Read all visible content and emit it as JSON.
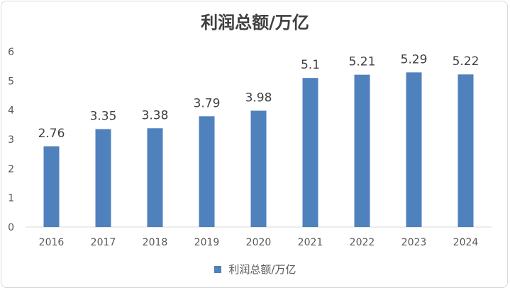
{
  "chart_data": {
    "type": "bar",
    "title": "利润总额/万亿",
    "categories": [
      "2016",
      "2017",
      "2018",
      "2019",
      "2020",
      "2021",
      "2022",
      "2023",
      "2024"
    ],
    "series": [
      {
        "name": "利润总额/万亿",
        "values": [
          2.76,
          3.35,
          3.38,
          3.79,
          3.98,
          5.1,
          5.21,
          5.29,
          5.22
        ],
        "color": "#4f81bd"
      }
    ],
    "data_labels": [
      "2.76",
      "3.35",
      "3.38",
      "3.79",
      "3.98",
      "5.1",
      "5.21",
      "5.29",
      "5.22"
    ],
    "ylim": [
      0,
      6
    ],
    "yticks": [
      "0",
      "1",
      "2",
      "3",
      "4",
      "5",
      "6"
    ],
    "xlabel": "",
    "ylabel": "",
    "grid": false,
    "legend_position": "bottom"
  }
}
